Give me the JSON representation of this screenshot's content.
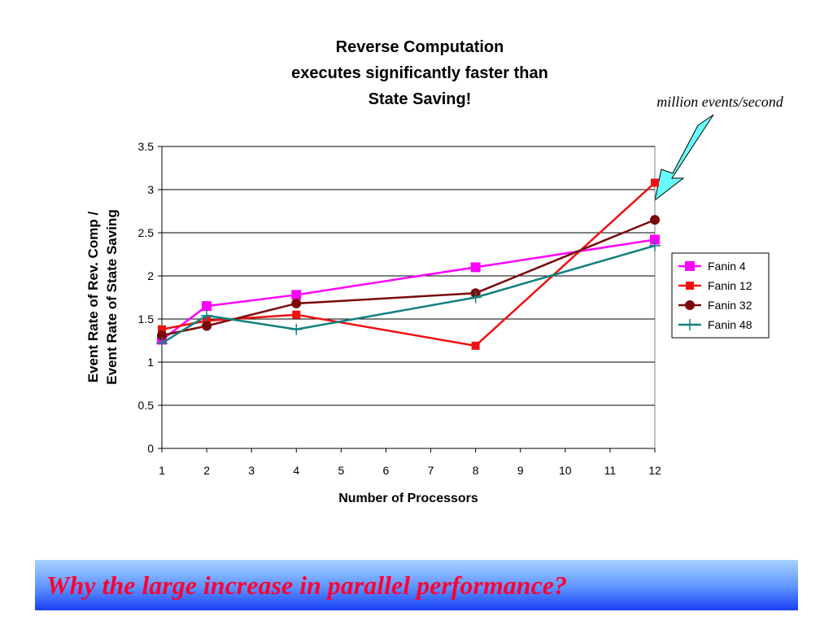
{
  "annotation": "million events/second",
  "banner": {
    "text": "Why the large increase in parallel performance?"
  },
  "colors": {
    "fanin4": "#ff00ff",
    "fanin12": "#ee1111",
    "fanin32": "#7a0a0a",
    "fanin48": "#128080",
    "arrow_fill": "#66ffff"
  },
  "chart_data": {
    "type": "line",
    "title": [
      "Reverse Computation",
      "executes significantly faster than",
      "State Saving!"
    ],
    "xlabel": "Number of Processors",
    "ylabel": [
      "Event Rate of Rev. Comp /",
      "Event  Rate of State Saving"
    ],
    "x_ticks": [
      "1",
      "2",
      "3",
      "4",
      "5",
      "6",
      "7",
      "8",
      "9",
      "10",
      "11",
      "12"
    ],
    "y_ticks": [
      "0",
      "0.5",
      "1",
      "1.5",
      "2",
      "2.5",
      "3",
      "3.5"
    ],
    "xlim": [
      1,
      12
    ],
    "ylim": [
      0,
      3.5
    ],
    "grid": "horizontal",
    "legend_position": "right",
    "series": [
      {
        "name": "Fanin 4",
        "marker": "square",
        "x": [
          1,
          2,
          4,
          8,
          12
        ],
        "values": [
          1.26,
          1.65,
          1.78,
          2.1,
          2.42
        ]
      },
      {
        "name": "Fanin 12",
        "marker": "square-small",
        "x": [
          1,
          2,
          4,
          8,
          12
        ],
        "values": [
          1.38,
          1.48,
          1.55,
          1.19,
          3.08
        ]
      },
      {
        "name": "Fanin 32",
        "marker": "circle",
        "x": [
          1,
          2,
          4,
          8,
          12
        ],
        "values": [
          1.31,
          1.42,
          1.68,
          1.8,
          2.65
        ]
      },
      {
        "name": "Fanin 48",
        "marker": "plus",
        "x": [
          1,
          2,
          4,
          8,
          12
        ],
        "values": [
          1.22,
          1.54,
          1.38,
          1.75,
          2.35
        ]
      }
    ]
  }
}
